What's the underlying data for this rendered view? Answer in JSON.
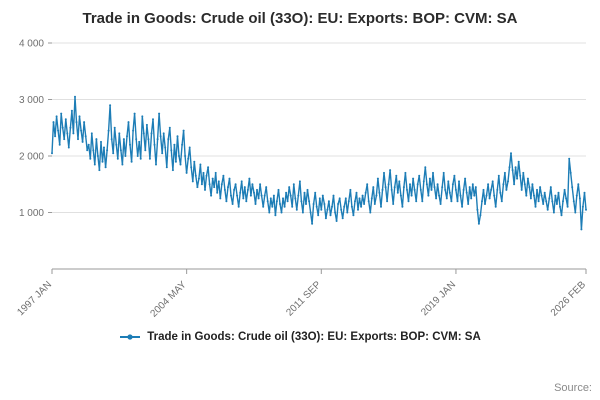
{
  "title": "Trade in Goods: Crude oil (33O): EU: Exports: BOP: CVM: SA",
  "source_label": "Source:",
  "chart_data": {
    "type": "line",
    "title": "Trade in Goods: Crude oil (33O): EU: Exports: BOP: CVM: SA",
    "xlabel": "",
    "ylabel": "",
    "ylim": [
      0,
      4000
    ],
    "grid": true,
    "legend_position": "bottom",
    "line_color": "#1d7db6",
    "x_tick_labels": [
      "1997 JAN",
      "2004 MAY",
      "2011 SEP",
      "2019 JAN",
      "2026 FEB"
    ],
    "x_tick_indices": [
      0,
      88,
      176,
      264,
      349
    ],
    "y_ticks": [
      1000,
      2000,
      3000,
      4000
    ],
    "y_tick_labels": [
      "1 000",
      "2 000",
      "3 000",
      "4 000"
    ],
    "x_start": "1997 JAN",
    "x_end": "2026 FEB",
    "x_frequency": "monthly",
    "series": [
      {
        "name": "Trade in Goods: Crude oil (33O): EU: Exports: BOP: CVM: SA",
        "values": [
          2050,
          2600,
          2350,
          2700,
          2450,
          2200,
          2750,
          2500,
          2300,
          2650,
          2400,
          2150,
          2500,
          2800,
          2400,
          3050,
          2600,
          2300,
          2700,
          2450,
          2250,
          2600,
          2350,
          2100,
          2200,
          1950,
          2400,
          2100,
          1850,
          2300,
          2000,
          1750,
          2250,
          1900,
          2150,
          1800,
          2100,
          2450,
          2900,
          2300,
          2050,
          2500,
          2200,
          1950,
          2400,
          2100,
          1850,
          2300,
          2000,
          2350,
          2600,
          2200,
          1900,
          2450,
          2750,
          2300,
          2000,
          2250,
          1950,
          2700,
          2400,
          2100,
          2550,
          2300,
          1950,
          2400,
          2650,
          2200,
          1850,
          2300,
          2750,
          2350,
          2050,
          2400,
          2150,
          1800,
          2300,
          2500,
          2100,
          1750,
          2200,
          1900,
          2350,
          2000,
          1850,
          2200,
          2450,
          2000,
          1700,
          1950,
          2150,
          1800,
          1550,
          1900,
          1650,
          1450,
          1600,
          1850,
          1500,
          1700,
          1400,
          1650,
          1800,
          1500,
          1300,
          1600,
          1450,
          1700,
          1350,
          1550,
          1250,
          1500,
          1650,
          1400,
          1200,
          1450,
          1600,
          1300,
          1150,
          1400,
          1500,
          1300,
          1100,
          1350,
          1550,
          1250,
          1450,
          1200,
          1400,
          1600,
          1300,
          1500,
          1350,
          1150,
          1400,
          1250,
          1500,
          1300,
          1100,
          1300,
          1450,
          1200,
          1000,
          1250,
          1100,
          1300,
          950,
          1200,
          1400,
          1150,
          1000,
          1250,
          1100,
          1350,
          1200,
          1450,
          1300,
          1100,
          1500,
          1250,
          1050,
          1300,
          1550,
          1200,
          1000,
          1350,
          1150,
          1400,
          1200,
          1000,
          800,
          1150,
          1350,
          1100,
          950,
          1250,
          1050,
          1300,
          1150,
          900,
          1050,
          1200,
          950,
          1100,
          1300,
          1000,
          850,
          1150,
          1250,
          1050,
          900,
          1100,
          1250,
          1000,
          1200,
          1400,
          1100,
          950,
          1200,
          1350,
          1050,
          1250,
          1100,
          1300,
          1150,
          1350,
          1500,
          1200,
          1000,
          1250,
          1450,
          1150,
          1300,
          1600,
          1350,
          1100,
          1400,
          1700,
          1450,
          1200,
          1500,
          1750,
          1400,
          1150,
          1450,
          1650,
          1350,
          1550,
          1300,
          1100,
          1450,
          1700,
          1400,
          1200,
          1500,
          1300,
          1600,
          1400,
          1200,
          1500,
          1650,
          1400,
          1200,
          1550,
          1800,
          1500,
          1300,
          1600,
          1400,
          1700,
          1450,
          1250,
          1500,
          1300,
          1150,
          1450,
          1700,
          1400,
          1250,
          1550,
          1350,
          1200,
          1500,
          1650,
          1400,
          1200,
          1550,
          1300,
          1100,
          1400,
          1600,
          1350,
          1150,
          1450,
          1250,
          1500,
          1300,
          1450,
          1050,
          800,
          950,
          1200,
          1400,
          1150,
          1300,
          1500,
          1250,
          1400,
          1550,
          1300,
          1100,
          1400,
          1650,
          1350,
          1200,
          1500,
          1700,
          1400,
          1550,
          1800,
          2050,
          1750,
          1500,
          1800,
          1600,
          1900,
          1650,
          1400,
          1700,
          1500,
          1300,
          1600,
          1450,
          1250,
          1500,
          1300,
          1100,
          1400,
          1200,
          1450,
          1300,
          1150,
          1350,
          1200,
          1050,
          1250,
          1450,
          1200,
          1000,
          1300,
          1150,
          1350,
          1100,
          950,
          1200,
          1400,
          1250,
          1100,
          1950,
          1700,
          1450,
          1200,
          1000,
          1300,
          1500,
          1250,
          700,
          1100,
          1350,
          1050
        ]
      }
    ]
  }
}
